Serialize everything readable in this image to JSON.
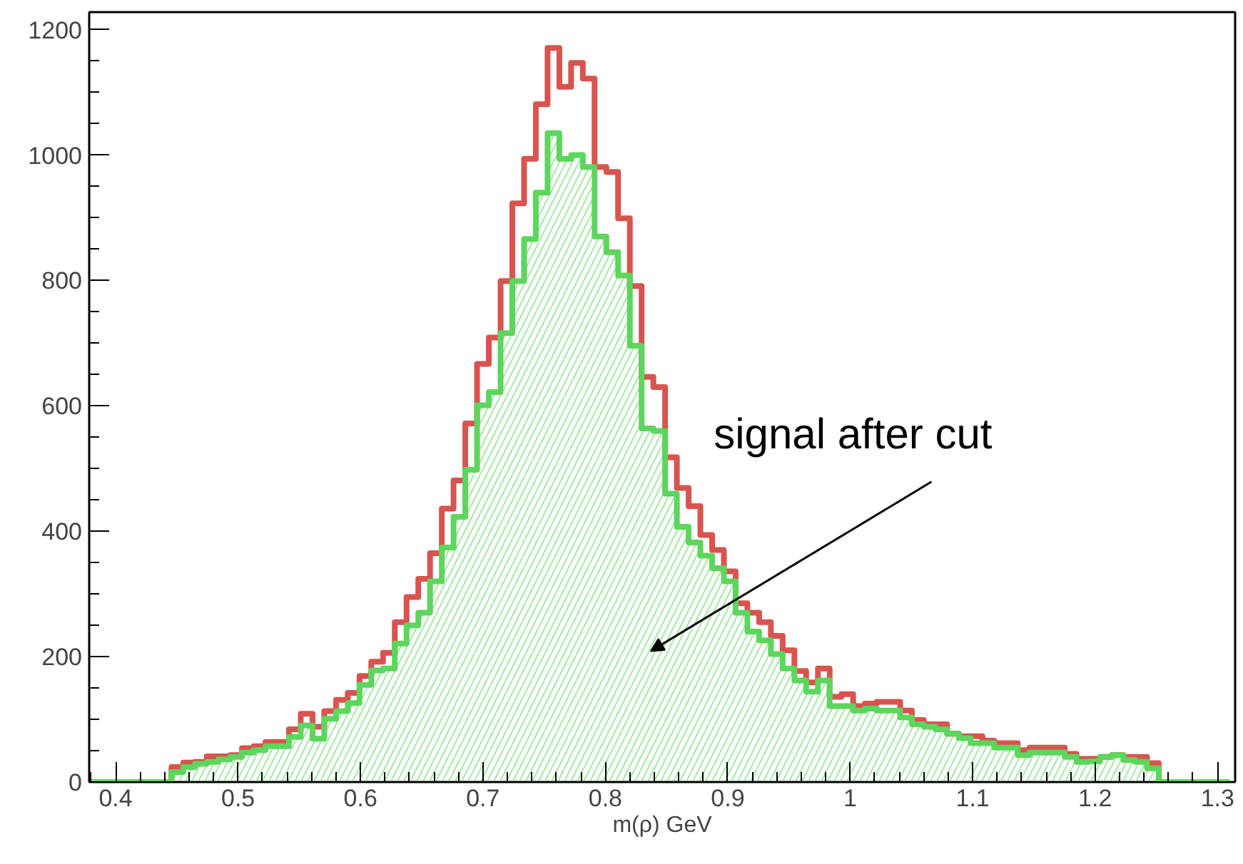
{
  "chart_data": {
    "type": "histogram",
    "xlabel": "m(ρ) GeV",
    "bins": [
      0.3784,
      0.388,
      0.3976,
      0.4072,
      0.4168,
      0.4264,
      0.436,
      0.4456,
      0.4552,
      0.4648,
      0.4744,
      0.484,
      0.4936,
      0.5032,
      0.5128,
      0.5224,
      0.532,
      0.5416,
      0.5512,
      0.5608,
      0.5704,
      0.58,
      0.5896,
      0.5992,
      0.6088,
      0.6184,
      0.628,
      0.6376,
      0.6472,
      0.6568,
      0.6664,
      0.676,
      0.6856,
      0.6952,
      0.7048,
      0.7144,
      0.724,
      0.7336,
      0.7432,
      0.7528,
      0.7624,
      0.772,
      0.7816,
      0.7912,
      0.8008,
      0.8104,
      0.82,
      0.8296,
      0.8392,
      0.8488,
      0.8584,
      0.868,
      0.8776,
      0.8872,
      0.8968,
      0.9064,
      0.916,
      0.9256,
      0.9352,
      0.9448,
      0.9544,
      0.964,
      0.9736,
      0.9832,
      0.9928,
      1.0024,
      1.012,
      1.0216,
      1.0312,
      1.0408,
      1.0504,
      1.06,
      1.0696,
      1.0792,
      1.0888,
      1.0984,
      1.108,
      1.1176,
      1.1272,
      1.1368,
      1.1464,
      1.156,
      1.1656,
      1.1752,
      1.1848,
      1.1944,
      1.204,
      1.2136,
      1.2232,
      1.2328,
      1.2424,
      1.252,
      1.2616,
      1.2712,
      1.2808,
      1.2904,
      1.3,
      1.3096
    ],
    "series": [
      {
        "color": "#d9534f",
        "values": [
          0,
          0,
          0,
          0,
          0,
          0,
          0,
          24,
          31,
          32,
          41,
          41,
          43,
          54,
          57,
          64,
          64,
          84,
          109,
          88,
          113,
          131,
          142,
          169,
          192,
          206,
          255,
          295,
          324,
          365,
          436,
          481,
          572,
          667,
          709,
          799,
          923,
          994,
          1081,
          1171,
          1109,
          1147,
          1122,
          981,
          973,
          899,
          791,
          646,
          630,
          518,
          469,
          440,
          394,
          370,
          336,
          285,
          270,
          255,
          233,
          210,
          177,
          159,
          181,
          136,
          140,
          121,
          125,
          128,
          128,
          114,
          99,
          92,
          92,
          77,
          73,
          73,
          66,
          62,
          62,
          51,
          55,
          55,
          55,
          45,
          37,
          37,
          40,
          43,
          40,
          40,
          30,
          0,
          0,
          0,
          0,
          0,
          0
        ]
      },
      {
        "color": "#5cd65c",
        "values": [
          0,
          0,
          0,
          0,
          0,
          0,
          0,
          16,
          24,
          29,
          32,
          36,
          40,
          47,
          51,
          57,
          57,
          72,
          90,
          69,
          101,
          113,
          126,
          155,
          178,
          181,
          221,
          250,
          270,
          320,
          374,
          423,
          498,
          601,
          622,
          716,
          799,
          866,
          940,
          1035,
          994,
          1000,
          981,
          870,
          845,
          808,
          696,
          564,
          560,
          460,
          407,
          382,
          361,
          341,
          320,
          270,
          240,
          226,
          204,
          181,
          162,
          144,
          162,
          121,
          121,
          114,
          117,
          114,
          114,
          103,
          92,
          88,
          84,
          77,
          70,
          62,
          62,
          55,
          55,
          43,
          47,
          47,
          47,
          40,
          32,
          33,
          40,
          43,
          35,
          32,
          22,
          0,
          0,
          0,
          0,
          0,
          0
        ]
      }
    ],
    "xlim": [
      0.3784,
      1.3144
    ],
    "ylim": [
      0,
      1228
    ],
    "xticks": [
      0.4,
      0.5,
      0.6,
      0.7,
      0.8,
      0.9,
      1,
      1.1,
      1.2,
      1.3
    ],
    "yticks": [
      0,
      200,
      400,
      600,
      800,
      1000,
      1200
    ],
    "grid": false,
    "annotations": [
      "signal after cut"
    ]
  }
}
